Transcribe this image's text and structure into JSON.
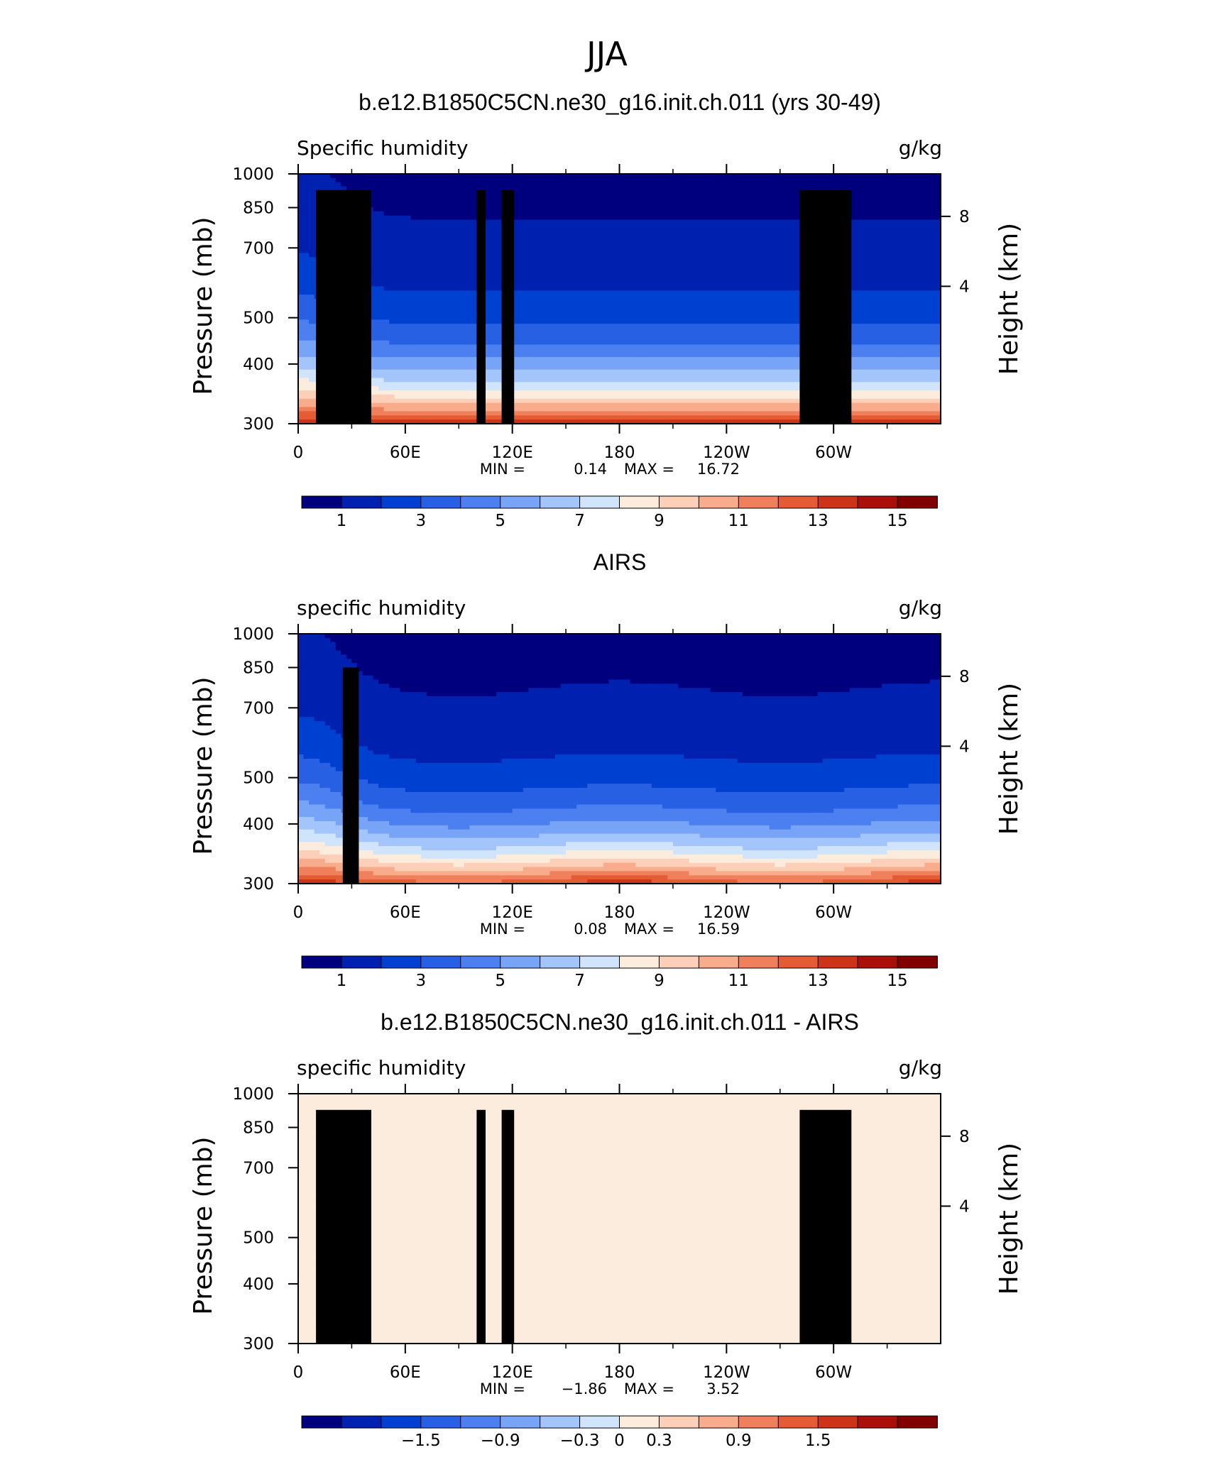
{
  "page_title": "JJA",
  "chart_data": [
    {
      "type": "heatmap",
      "title": "b.e12.B1850C5CN.ne30_g16.init.ch.011 (yrs 30-49)",
      "left_string": "Specific humidity",
      "right_string": "g/kg",
      "xlabel": "",
      "ylabel": "Pressure (mb)",
      "ylabel_right": "Height (km)",
      "x_ticks": [
        "0",
        "60E",
        "120E",
        "180",
        "120W",
        "60W"
      ],
      "x_tick_values": [
        0,
        60,
        120,
        180,
        240,
        300
      ],
      "xlim": [
        0,
        360
      ],
      "y_ticks": [
        "300",
        "400",
        "500",
        "700",
        "850",
        "1000"
      ],
      "y_tick_values": [
        300,
        400,
        500,
        700,
        850,
        1000
      ],
      "ylim": [
        1000,
        300
      ],
      "y_scale": "log",
      "right_ticks": [
        "8",
        "4"
      ],
      "min_label": "MIN =",
      "min_value": "0.14",
      "max_label": "MAX =",
      "max_value": "16.72",
      "colorbar_levels": [
        0,
        1,
        2,
        3,
        4,
        5,
        6,
        7,
        8,
        9,
        10,
        11,
        12,
        13,
        14,
        15,
        16
      ],
      "colorbar_labels": [
        "1",
        "3",
        "5",
        "7",
        "9",
        "11",
        "13",
        "15"
      ],
      "colormap": "BlueWhiteOrangeRed",
      "field": "model"
    },
    {
      "type": "heatmap",
      "title": "AIRS",
      "left_string": "specific humidity",
      "right_string": "g/kg",
      "xlabel": "",
      "ylabel": "Pressure (mb)",
      "ylabel_right": "Height (km)",
      "x_ticks": [
        "0",
        "60E",
        "120E",
        "180",
        "120W",
        "60W"
      ],
      "x_tick_values": [
        0,
        60,
        120,
        180,
        240,
        300
      ],
      "xlim": [
        0,
        360
      ],
      "y_ticks": [
        "300",
        "400",
        "500",
        "700",
        "850",
        "1000"
      ],
      "y_tick_values": [
        300,
        400,
        500,
        700,
        850,
        1000
      ],
      "ylim": [
        1000,
        300
      ],
      "y_scale": "log",
      "right_ticks": [
        "8",
        "4"
      ],
      "min_label": "MIN =",
      "min_value": "0.08",
      "max_label": "MAX =",
      "max_value": "16.59",
      "colorbar_levels": [
        0,
        1,
        2,
        3,
        4,
        5,
        6,
        7,
        8,
        9,
        10,
        11,
        12,
        13,
        14,
        15,
        16
      ],
      "colorbar_labels": [
        "1",
        "3",
        "5",
        "7",
        "9",
        "11",
        "13",
        "15"
      ],
      "colormap": "BlueWhiteOrangeRed",
      "field": "obs"
    },
    {
      "type": "heatmap",
      "title": "b.e12.B1850C5CN.ne30_g16.init.ch.011 - AIRS",
      "left_string": "specific humidity",
      "right_string": "g/kg",
      "xlabel": "",
      "ylabel": "Pressure (mb)",
      "ylabel_right": "Height (km)",
      "x_ticks": [
        "0",
        "60E",
        "120E",
        "180",
        "120W",
        "60W"
      ],
      "x_tick_values": [
        0,
        60,
        120,
        180,
        240,
        300
      ],
      "xlim": [
        0,
        360
      ],
      "y_ticks": [
        "300",
        "400",
        "500",
        "700",
        "850",
        "1000"
      ],
      "y_tick_values": [
        300,
        400,
        500,
        700,
        850,
        1000
      ],
      "ylim": [
        1000,
        300
      ],
      "y_scale": "log",
      "right_ticks": [
        "8",
        "4"
      ],
      "min_label": "MIN =",
      "min_value": "−1.86",
      "max_label": "MAX =",
      "max_value": "3.52",
      "colorbar_levels": [
        -2.4,
        -2.1,
        -1.8,
        -1.5,
        -1.2,
        -0.9,
        -0.6,
        -0.3,
        0,
        0.3,
        0.6,
        0.9,
        1.2,
        1.5,
        1.8,
        2.1,
        2.4
      ],
      "colorbar_labels": [
        "−1.5",
        "−0.9",
        "−0.3",
        "0",
        "0.3",
        "0.9",
        "1.5"
      ],
      "colormap": "BlueWhiteOrangeRed",
      "field": "diff"
    }
  ],
  "palette": [
    "#00007f",
    "#0020b0",
    "#0040d0",
    "#2860e4",
    "#4c80f0",
    "#78a4f8",
    "#a4c4fc",
    "#d0e4fc",
    "#fcecde",
    "#fcd0b8",
    "#f8ac8c",
    "#f0805c",
    "#e45c34",
    "#cc3418",
    "#a81008",
    "#800000"
  ],
  "land_mask_color": "#000000"
}
